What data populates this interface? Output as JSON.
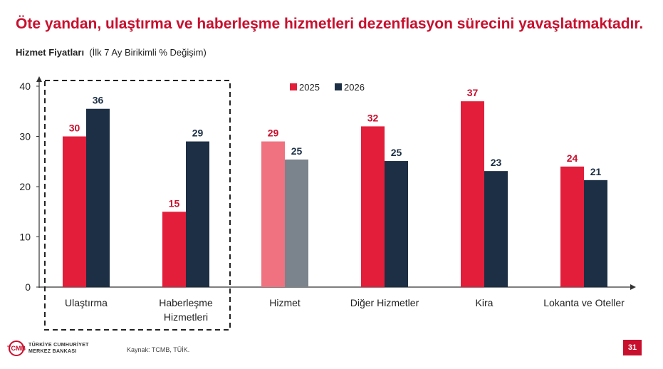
{
  "headline": "Öte yandan, ulaştırma ve haberleşme hizmetleri dezenflasyon sürecini yavaşlatmaktadır.",
  "subtitle_bold": "Hizmet Fiyatları",
  "subtitle_rest": "(İlk 7 Ay Birikimli % Değişim)",
  "source": "Kaynak: TCMB, TÜİK.",
  "page_number": "31",
  "logo": {
    "mark": "TCMB",
    "line1": "TÜRKİYE CUMHURİYET",
    "line2": "MERKEZ BANKASI"
  },
  "colors": {
    "accent": "#c8102e",
    "series_2025": "#e31e3a",
    "series_2026": "#1c2f44",
    "hizmet_2025": "#f0717f",
    "hizmet_2026": "#7b838c"
  },
  "chart_data": {
    "type": "bar",
    "categories": [
      "Ulaştırma",
      "Haberleşme\nHizmetleri",
      "Hizmet",
      "Diğer Hizmetler",
      "Kira",
      "Lokanta ve Oteller"
    ],
    "series": [
      {
        "name": "2025",
        "values": [
          30,
          15,
          29,
          32,
          37,
          24
        ],
        "labels": [
          "30",
          "15",
          "29",
          "32",
          "37",
          "24"
        ]
      },
      {
        "name": "2026",
        "values": [
          35.5,
          29,
          25.4,
          25.1,
          23.1,
          21.3
        ],
        "labels": [
          "36",
          "29",
          "25",
          "25",
          "23",
          "21"
        ]
      }
    ],
    "ylim": [
      0,
      40
    ],
    "yticks": [
      0,
      10,
      20,
      30,
      40
    ],
    "highlighted": [
      "Ulaştırma",
      "Haberleşme\nHizmetleri"
    ],
    "legend_position": "top-center",
    "grid": false
  }
}
